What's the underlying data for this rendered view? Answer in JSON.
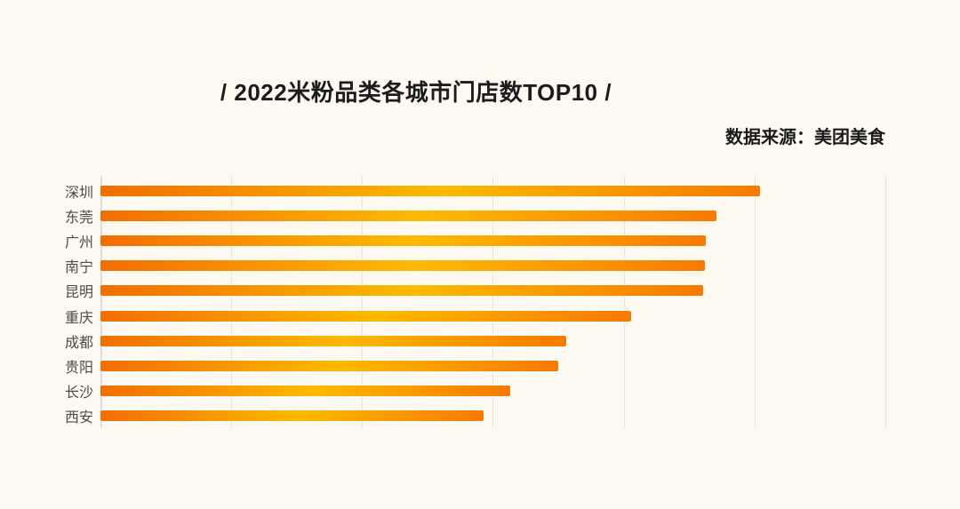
{
  "page": {
    "background": "#FDF9F1"
  },
  "header": {
    "title": "/ 2022米粉品类各城市门店数TOP10 /",
    "source": "数据来源：美团美食"
  },
  "chart_data": {
    "type": "bar",
    "orientation": "horizontal",
    "title": "/ 2022米粉品类各城市门店数TOP10 /",
    "source": "数据来源：美团美食",
    "categories": [
      "深圳",
      "东莞",
      "广州",
      "南宁",
      "昆明",
      "重庆",
      "成都",
      "贵阳",
      "长沙",
      "西安"
    ],
    "values": [
      5.04,
      4.71,
      4.63,
      4.62,
      4.61,
      4.06,
      3.56,
      3.5,
      3.13,
      2.93
    ],
    "value_scale": "gridline-intervals (x axis has no visible tick labels; values estimated relative to gridlines)",
    "xlim": [
      0,
      6.3
    ],
    "gridline_units": [
      1,
      2,
      3,
      4,
      5,
      6
    ],
    "grid_on": true,
    "legend": null,
    "xlabel": "",
    "ylabel": "",
    "colors": {
      "bar_gradient_start": "#F36E00",
      "bar_gradient_mid": "#FDBA00",
      "bar_gradient_end": "#F87A00",
      "gridline": "#E9E5DD",
      "axis": "#E3DFD7",
      "background": "#FDF9F1",
      "title_text": "#1C1C1C",
      "label_text": "#4B4B4B"
    }
  }
}
